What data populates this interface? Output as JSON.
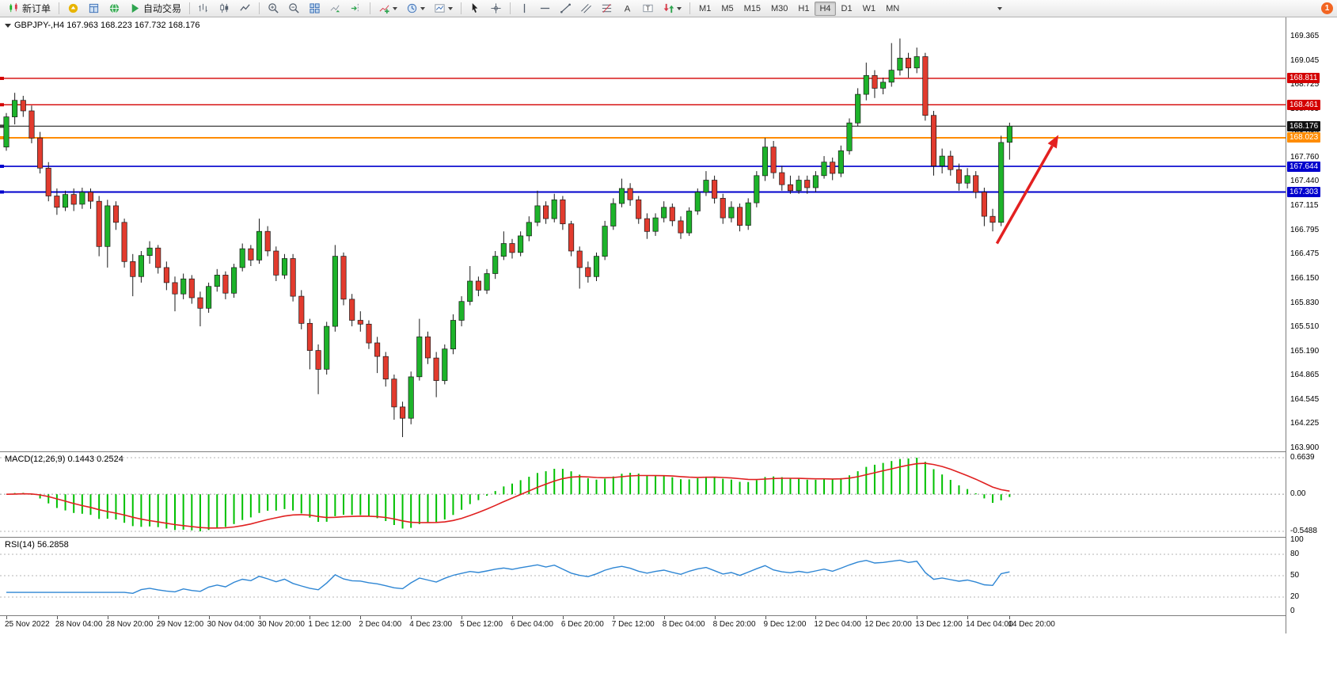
{
  "toolbar": {
    "new_order_label": "新订单",
    "autotrade_label": "自动交易",
    "timeframes": [
      "M1",
      "M5",
      "M15",
      "M30",
      "H1",
      "H4",
      "D1",
      "W1",
      "MN"
    ],
    "active_timeframe": "H4",
    "badge_count": "1"
  },
  "chart": {
    "symbol_info": "GBPJPY-,H4 167.963 168.223 167.732 168.176"
  },
  "colors": {
    "candle_up": "#1db32a",
    "candle_down": "#e23b2e",
    "wick": "#1a1a1a",
    "macd_hist": "#00c000",
    "macd_signal": "#e02020",
    "rsi_line": "#2e86d4",
    "dash": "#b5b5b5",
    "arrow": "#e32020"
  },
  "chart_data": {
    "type": "candlestick",
    "symbol": "GBPJPY-",
    "period": "H4",
    "current_ohlc": {
      "open": 167.963,
      "high": 168.223,
      "low": 167.732,
      "close": 168.176
    },
    "price_axis": [
      169.365,
      169.045,
      168.725,
      168.405,
      168.085,
      167.76,
      167.44,
      167.115,
      166.795,
      166.475,
      166.15,
      165.83,
      165.51,
      165.19,
      164.865,
      164.545,
      164.225,
      163.9
    ],
    "hlines": [
      {
        "price": 168.811,
        "label": "168.811",
        "color": "#d40000",
        "width": 1.4,
        "tag": "#d40000"
      },
      {
        "price": 168.461,
        "label": "168.461",
        "color": "#d40000",
        "width": 1.4,
        "tag": "#d40000"
      },
      {
        "price": 168.176,
        "label": "168.176",
        "color": "#3d3d3d",
        "width": 1.2,
        "tag": "#111111"
      },
      {
        "price": 168.023,
        "label": "168.023",
        "color": "#ff8c00",
        "width": 2,
        "tag": "#ff8c00"
      },
      {
        "price": 167.644,
        "label": "167.644",
        "color": "#0000cd",
        "width": 1.6,
        "tag": "#0000cd"
      },
      {
        "price": 167.303,
        "label": "167.303",
        "color": "#0000cd",
        "width": 2,
        "tag": "#0000cd"
      }
    ],
    "candles": [
      [
        167.9,
        168.35,
        167.85,
        168.3
      ],
      [
        168.3,
        168.62,
        168.2,
        168.52
      ],
      [
        168.52,
        168.58,
        168.3,
        168.38
      ],
      [
        168.38,
        168.45,
        167.95,
        168.02
      ],
      [
        168.02,
        168.1,
        167.55,
        167.62
      ],
      [
        167.62,
        167.7,
        167.18,
        167.25
      ],
      [
        167.25,
        167.35,
        167.0,
        167.1
      ],
      [
        167.1,
        167.32,
        167.05,
        167.27
      ],
      [
        167.27,
        167.35,
        167.05,
        167.14
      ],
      [
        167.14,
        167.36,
        167.08,
        167.3
      ],
      [
        167.3,
        167.35,
        167.08,
        167.18
      ],
      [
        167.18,
        167.25,
        166.45,
        166.58
      ],
      [
        166.58,
        167.2,
        166.3,
        167.12
      ],
      [
        167.12,
        167.18,
        166.8,
        166.9
      ],
      [
        166.9,
        166.95,
        166.3,
        166.38
      ],
      [
        166.38,
        166.48,
        165.92,
        166.18
      ],
      [
        166.18,
        166.52,
        166.1,
        166.46
      ],
      [
        166.46,
        166.65,
        166.35,
        166.56
      ],
      [
        166.56,
        166.6,
        166.22,
        166.3
      ],
      [
        166.3,
        166.38,
        166.0,
        166.1
      ],
      [
        166.1,
        166.18,
        165.72,
        165.95
      ],
      [
        165.95,
        166.22,
        165.88,
        166.15
      ],
      [
        166.15,
        166.2,
        165.82,
        165.9
      ],
      [
        165.9,
        165.98,
        165.52,
        165.76
      ],
      [
        165.76,
        166.1,
        165.7,
        166.05
      ],
      [
        166.05,
        166.28,
        165.98,
        166.2
      ],
      [
        166.2,
        166.25,
        165.88,
        165.96
      ],
      [
        165.96,
        166.35,
        165.9,
        166.3
      ],
      [
        166.3,
        166.62,
        166.25,
        166.55
      ],
      [
        166.55,
        166.6,
        166.32,
        166.4
      ],
      [
        166.4,
        166.95,
        166.35,
        166.78
      ],
      [
        166.78,
        166.85,
        166.45,
        166.52
      ],
      [
        166.52,
        166.58,
        166.12,
        166.2
      ],
      [
        166.2,
        166.48,
        166.15,
        166.42
      ],
      [
        166.42,
        166.48,
        165.85,
        165.92
      ],
      [
        165.92,
        166.0,
        165.48,
        165.56
      ],
      [
        165.56,
        165.62,
        164.95,
        165.2
      ],
      [
        165.2,
        165.28,
        164.62,
        164.95
      ],
      [
        164.95,
        165.58,
        164.88,
        165.52
      ],
      [
        165.52,
        166.6,
        165.45,
        166.45
      ],
      [
        166.45,
        166.5,
        165.8,
        165.88
      ],
      [
        165.88,
        165.95,
        165.52,
        165.6
      ],
      [
        165.6,
        165.72,
        165.45,
        165.55
      ],
      [
        165.55,
        165.6,
        165.22,
        165.3
      ],
      [
        165.3,
        165.38,
        164.9,
        165.12
      ],
      [
        165.12,
        165.18,
        164.72,
        164.82
      ],
      [
        164.82,
        164.88,
        164.28,
        164.45
      ],
      [
        164.45,
        164.52,
        164.05,
        164.3
      ],
      [
        164.3,
        164.92,
        164.22,
        164.85
      ],
      [
        164.85,
        165.62,
        164.8,
        165.38
      ],
      [
        165.38,
        165.45,
        165.02,
        165.1
      ],
      [
        165.1,
        165.18,
        164.58,
        164.8
      ],
      [
        164.8,
        165.28,
        164.75,
        165.22
      ],
      [
        165.22,
        165.68,
        165.15,
        165.6
      ],
      [
        165.6,
        165.92,
        165.52,
        165.85
      ],
      [
        165.85,
        166.32,
        165.8,
        166.12
      ],
      [
        166.12,
        166.18,
        165.92,
        166.0
      ],
      [
        166.0,
        166.28,
        165.95,
        166.22
      ],
      [
        166.22,
        166.52,
        166.15,
        166.45
      ],
      [
        166.45,
        166.78,
        166.4,
        166.62
      ],
      [
        166.62,
        166.68,
        166.42,
        166.5
      ],
      [
        166.5,
        166.78,
        166.45,
        166.72
      ],
      [
        166.72,
        166.98,
        166.65,
        166.9
      ],
      [
        166.9,
        167.32,
        166.85,
        167.12
      ],
      [
        167.12,
        167.18,
        166.88,
        166.95
      ],
      [
        166.95,
        167.28,
        166.9,
        167.2
      ],
      [
        167.2,
        167.25,
        166.8,
        166.88
      ],
      [
        166.88,
        166.92,
        166.45,
        166.52
      ],
      [
        166.52,
        166.58,
        166.02,
        166.3
      ],
      [
        166.3,
        166.38,
        166.1,
        166.18
      ],
      [
        166.18,
        166.5,
        166.12,
        166.45
      ],
      [
        166.45,
        166.92,
        166.4,
        166.85
      ],
      [
        166.85,
        167.22,
        166.8,
        167.15
      ],
      [
        167.15,
        167.48,
        167.1,
        167.35
      ],
      [
        167.35,
        167.42,
        167.12,
        167.2
      ],
      [
        167.2,
        167.25,
        166.88,
        166.95
      ],
      [
        166.95,
        167.02,
        166.68,
        166.78
      ],
      [
        166.78,
        167.02,
        166.72,
        166.96
      ],
      [
        166.96,
        167.18,
        166.9,
        167.1
      ],
      [
        167.1,
        167.15,
        166.85,
        166.92
      ],
      [
        166.92,
        166.98,
        166.68,
        166.76
      ],
      [
        166.76,
        167.1,
        166.72,
        167.05
      ],
      [
        167.05,
        167.35,
        167.0,
        167.3
      ],
      [
        167.3,
        167.58,
        167.25,
        167.46
      ],
      [
        167.46,
        167.52,
        167.15,
        167.22
      ],
      [
        167.22,
        167.28,
        166.88,
        166.96
      ],
      [
        166.96,
        167.18,
        166.9,
        167.1
      ],
      [
        167.1,
        167.15,
        166.78,
        166.86
      ],
      [
        166.86,
        167.22,
        166.8,
        167.16
      ],
      [
        167.16,
        167.58,
        167.1,
        167.52
      ],
      [
        167.52,
        168.02,
        167.45,
        167.9
      ],
      [
        167.9,
        167.98,
        167.48,
        167.56
      ],
      [
        167.56,
        167.65,
        167.32,
        167.4
      ],
      [
        167.4,
        167.52,
        167.28,
        167.32
      ],
      [
        167.32,
        167.52,
        167.28,
        167.46
      ],
      [
        167.46,
        167.52,
        167.28,
        167.36
      ],
      [
        167.36,
        167.58,
        167.3,
        167.52
      ],
      [
        167.52,
        167.78,
        167.48,
        167.7
      ],
      [
        167.7,
        167.76,
        167.46,
        167.55
      ],
      [
        167.55,
        167.92,
        167.5,
        167.85
      ],
      [
        167.85,
        168.28,
        167.8,
        168.22
      ],
      [
        168.22,
        168.68,
        168.18,
        168.6
      ],
      [
        168.6,
        169.02,
        168.52,
        168.85
      ],
      [
        168.85,
        168.92,
        168.55,
        168.68
      ],
      [
        168.68,
        168.82,
        168.6,
        168.76
      ],
      [
        168.76,
        169.28,
        168.7,
        168.92
      ],
      [
        168.92,
        169.34,
        168.85,
        169.08
      ],
      [
        169.08,
        169.15,
        168.82,
        168.95
      ],
      [
        168.95,
        169.22,
        168.88,
        169.1
      ],
      [
        169.1,
        169.15,
        168.25,
        168.32
      ],
      [
        168.32,
        168.38,
        167.52,
        167.65
      ],
      [
        167.65,
        167.88,
        167.55,
        167.78
      ],
      [
        167.78,
        167.85,
        167.52,
        167.6
      ],
      [
        167.6,
        167.68,
        167.32,
        167.42
      ],
      [
        167.42,
        167.62,
        167.35,
        167.52
      ],
      [
        167.52,
        167.58,
        167.22,
        167.3
      ],
      [
        167.3,
        167.36,
        166.85,
        166.98
      ],
      [
        166.98,
        167.08,
        166.78,
        166.9
      ],
      [
        166.9,
        168.05,
        166.85,
        167.96
      ],
      [
        167.963,
        168.223,
        167.732,
        168.176
      ]
    ],
    "time_labels": [
      {
        "t": "25 Nov 2022",
        "b": 0
      },
      {
        "t": "28 Nov 04:00",
        "b": 6
      },
      {
        "t": "28 Nov 20:00",
        "b": 12
      },
      {
        "t": "29 Nov 12:00",
        "b": 18
      },
      {
        "t": "30 Nov 04:00",
        "b": 24
      },
      {
        "t": "30 Nov 20:00",
        "b": 30
      },
      {
        "t": "1 Dec 12:00",
        "b": 36
      },
      {
        "t": "2 Dec 04:00",
        "b": 42
      },
      {
        "t": "4 Dec 23:00",
        "b": 48
      },
      {
        "t": "5 Dec 12:00",
        "b": 54
      },
      {
        "t": "6 Dec 04:00",
        "b": 60
      },
      {
        "t": "6 Dec 20:00",
        "b": 66
      },
      {
        "t": "7 Dec 12:00",
        "b": 72
      },
      {
        "t": "8 Dec 04:00",
        "b": 78
      },
      {
        "t": "8 Dec 20:00",
        "b": 84
      },
      {
        "t": "9 Dec 12:00",
        "b": 90
      },
      {
        "t": "12 Dec 04:00",
        "b": 96
      },
      {
        "t": "12 Dec 20:00",
        "b": 102
      },
      {
        "t": "13 Dec 12:00",
        "b": 108
      },
      {
        "t": "14 Dec 04:00",
        "b": 114
      },
      {
        "t": "14 Dec 20:00",
        "b": 119
      }
    ],
    "arrow": {
      "bar1": 117.5,
      "price1": 166.62,
      "bar2": 124.8,
      "price2": 168.06
    },
    "macd": {
      "label": "MACD(12,26,9) 0.1443 0.2524",
      "value_main": 0.1443,
      "value_signal": 0.2524,
      "scale_labels": [
        "0.6639",
        "0.00",
        "-0.5488"
      ]
    },
    "rsi": {
      "label": "RSI(14) 56.2858",
      "value": 56.2858,
      "scale_labels": [
        "100",
        "80",
        "50",
        "20",
        "0"
      ],
      "scale_values": [
        100,
        80,
        50,
        20,
        0
      ],
      "levels": [
        80,
        50,
        20
      ]
    }
  }
}
